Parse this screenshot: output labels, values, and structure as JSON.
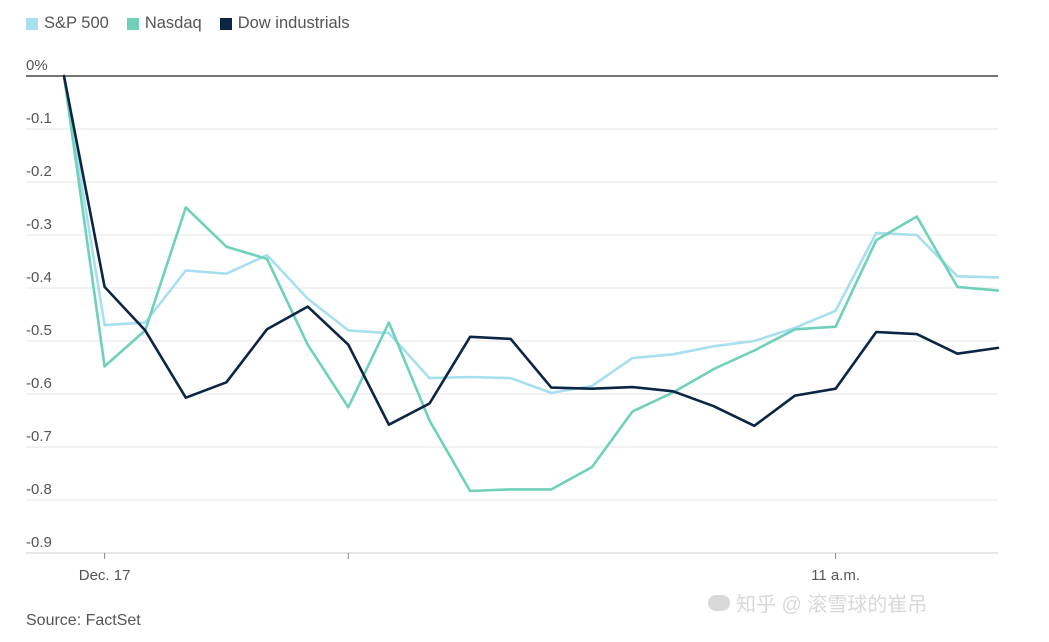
{
  "colors": {
    "sp500": "#a8dff0",
    "nasdaq": "#6fd1b9",
    "dow": "#0b2545",
    "grid": "#e5e5e5",
    "zero_line": "#222222",
    "axis": "#cccccc"
  },
  "legend": [
    {
      "label": "S&P 500",
      "color": "#a8dff0"
    },
    {
      "label": "Nasdaq",
      "color": "#6fd1b9"
    },
    {
      "label": "Dow industrials",
      "color": "#0b2545"
    }
  ],
  "source": "Source: FactSet",
  "watermark": "知乎 @ 滚雪球的崔吊",
  "chart_data": {
    "type": "line",
    "title": "",
    "xlabel": "",
    "ylabel": "",
    "ylim": [
      -0.9,
      0
    ],
    "y_ticks": [
      {
        "value": 0,
        "label": "0%"
      },
      {
        "value": -0.1,
        "label": "-0.1"
      },
      {
        "value": -0.2,
        "label": "-0.2"
      },
      {
        "value": -0.3,
        "label": "-0.3"
      },
      {
        "value": -0.4,
        "label": "-0.4"
      },
      {
        "value": -0.5,
        "label": "-0.5"
      },
      {
        "value": -0.6,
        "label": "-0.6"
      },
      {
        "value": -0.7,
        "label": "-0.7"
      },
      {
        "value": -0.8,
        "label": "-0.8"
      },
      {
        "value": -0.9,
        "label": "-0.9"
      }
    ],
    "x_ticks": [
      {
        "index": 1,
        "label": "Dec. 17"
      },
      {
        "index": 7,
        "label": ""
      },
      {
        "index": 19,
        "label": "11 a.m."
      }
    ],
    "x_count": 24,
    "grid": true,
    "legend_position": "top-left",
    "series": [
      {
        "name": "S&P 500",
        "key": "sp500",
        "values": [
          0,
          -0.47,
          -0.465,
          -0.367,
          -0.373,
          -0.338,
          -0.42,
          -0.48,
          -0.485,
          -0.57,
          -0.568,
          -0.57,
          -0.598,
          -0.585,
          -0.532,
          -0.525,
          -0.51,
          -0.5,
          -0.475,
          -0.443,
          -0.296,
          -0.3,
          -0.378,
          -0.38
        ]
      },
      {
        "name": "Nasdaq",
        "key": "nasdaq",
        "values": [
          0,
          -0.548,
          -0.48,
          -0.248,
          -0.322,
          -0.345,
          -0.507,
          -0.625,
          -0.465,
          -0.65,
          -0.783,
          -0.78,
          -0.78,
          -0.738,
          -0.633,
          -0.597,
          -0.553,
          -0.518,
          -0.478,
          -0.473,
          -0.31,
          -0.265,
          -0.398,
          -0.405
        ]
      },
      {
        "name": "Dow industrials",
        "key": "dow",
        "values": [
          0,
          -0.398,
          -0.48,
          -0.607,
          -0.578,
          -0.478,
          -0.435,
          -0.507,
          -0.658,
          -0.618,
          -0.492,
          -0.496,
          -0.588,
          -0.59,
          -0.587,
          -0.595,
          -0.623,
          -0.66,
          -0.603,
          -0.59,
          -0.483,
          -0.487,
          -0.524,
          -0.513
        ]
      }
    ]
  }
}
